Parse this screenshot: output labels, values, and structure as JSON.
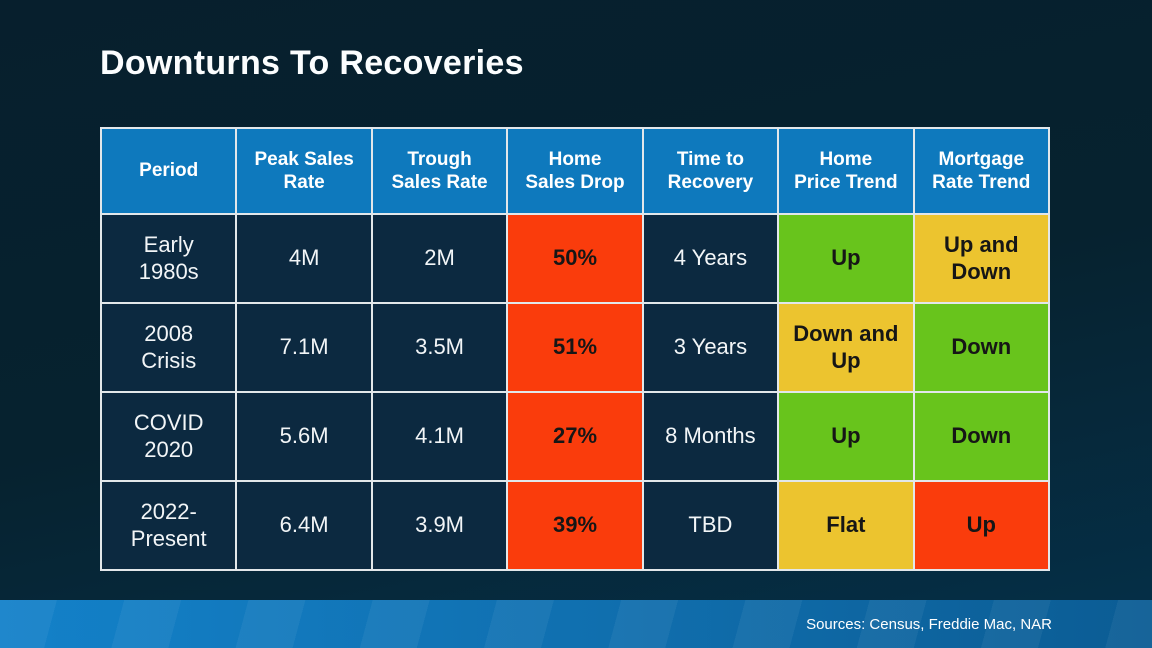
{
  "slide": {
    "title": "Downturns To Recoveries",
    "source_note": "Sources: Census, Freddie Mac, NAR"
  },
  "colors": {
    "background_top": "#071f2d",
    "background_bottom": "#053049",
    "header_blue": "#0e79bd",
    "cell_dark_navy": "#0c2940",
    "highlight_red": "#fa3c0c",
    "highlight_green": "#68c41c",
    "highlight_yellow": "#ecc42f",
    "grid_line": "#e2e7ea",
    "footer_blue_left": "#1381c9",
    "footer_blue_right": "#0b5c94",
    "text_light": "#f2f5f7",
    "text_dark": "#161616"
  },
  "table": {
    "headers": [
      "Period",
      "Peak Sales\nRate",
      "Trough\nSales Rate",
      "Home\nSales Drop",
      "Time to\nRecovery",
      "Home\nPrice Trend",
      "Mortgage\nRate Trend"
    ],
    "rows": [
      {
        "cells": [
          {
            "text": "Early\n1980s",
            "style": "dark"
          },
          {
            "text": "4M",
            "style": "dark"
          },
          {
            "text": "2M",
            "style": "dark"
          },
          {
            "text": "50%",
            "style": "red"
          },
          {
            "text": "4 Years",
            "style": "dark"
          },
          {
            "text": "Up",
            "style": "green"
          },
          {
            "text": "Up and\nDown",
            "style": "yellow"
          }
        ]
      },
      {
        "cells": [
          {
            "text": "2008\nCrisis",
            "style": "dark"
          },
          {
            "text": "7.1M",
            "style": "dark"
          },
          {
            "text": "3.5M",
            "style": "dark"
          },
          {
            "text": "51%",
            "style": "red"
          },
          {
            "text": "3 Years",
            "style": "dark"
          },
          {
            "text": "Down and\nUp",
            "style": "yellow"
          },
          {
            "text": "Down",
            "style": "green"
          }
        ]
      },
      {
        "cells": [
          {
            "text": "COVID\n2020",
            "style": "dark"
          },
          {
            "text": "5.6M",
            "style": "dark"
          },
          {
            "text": "4.1M",
            "style": "dark"
          },
          {
            "text": "27%",
            "style": "red"
          },
          {
            "text": "8 Months",
            "style": "dark"
          },
          {
            "text": "Up",
            "style": "green"
          },
          {
            "text": "Down",
            "style": "green"
          }
        ]
      },
      {
        "cells": [
          {
            "text": "2022-\nPresent",
            "style": "dark"
          },
          {
            "text": "6.4M",
            "style": "dark"
          },
          {
            "text": "3.9M",
            "style": "dark"
          },
          {
            "text": "39%",
            "style": "red"
          },
          {
            "text": "TBD",
            "style": "dark"
          },
          {
            "text": "Flat",
            "style": "yellow"
          },
          {
            "text": "Up",
            "style": "red"
          }
        ]
      }
    ]
  },
  "chart_data": {
    "type": "table",
    "title": "Downturns To Recoveries",
    "columns": [
      "Period",
      "Peak Sales Rate",
      "Trough Sales Rate",
      "Home Sales Drop",
      "Time to Recovery",
      "Home Price Trend",
      "Mortgage Rate Trend"
    ],
    "rows": [
      [
        "Early 1980s",
        "4M",
        "2M",
        "50%",
        "4 Years",
        "Up",
        "Up and Down"
      ],
      [
        "2008 Crisis",
        "7.1M",
        "3.5M",
        "51%",
        "3 Years",
        "Down and Up",
        "Down"
      ],
      [
        "COVID 2020",
        "5.6M",
        "4.1M",
        "27%",
        "8 Months",
        "Up",
        "Down"
      ],
      [
        "2022-Present",
        "6.4M",
        "3.9M",
        "39%",
        "TBD",
        "Flat",
        "Up"
      ]
    ],
    "cell_colors": [
      [
        "dark",
        "dark",
        "dark",
        "red",
        "dark",
        "green",
        "yellow"
      ],
      [
        "dark",
        "dark",
        "dark",
        "red",
        "dark",
        "yellow",
        "green"
      ],
      [
        "dark",
        "dark",
        "dark",
        "red",
        "dark",
        "green",
        "green"
      ],
      [
        "dark",
        "dark",
        "dark",
        "red",
        "dark",
        "yellow",
        "red"
      ]
    ],
    "source": "Sources: Census, Freddie Mac, NAR"
  }
}
